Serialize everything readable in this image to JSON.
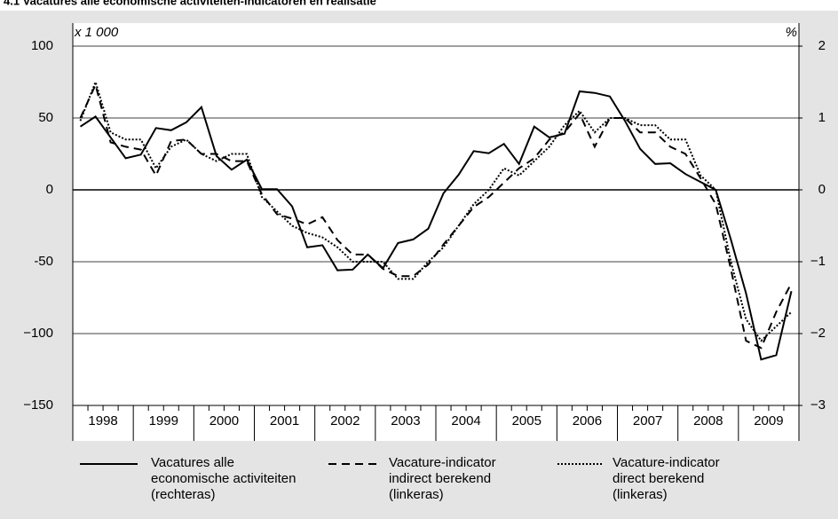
{
  "chart_data": {
    "type": "line",
    "title": "4.1  Vacatures alle economische activiteiten-indicatoren en realisatie",
    "y_unit_label": "x 1 000",
    "y2_unit_label": "%",
    "x": [
      1998.125,
      1998.375,
      1998.625,
      1998.875,
      1999.125,
      1999.375,
      1999.625,
      1999.875,
      2000.125,
      2000.375,
      2000.625,
      2000.875,
      2001.125,
      2001.375,
      2001.625,
      2001.875,
      2002.125,
      2002.375,
      2002.625,
      2002.875,
      2003.125,
      2003.375,
      2003.625,
      2003.875,
      2004.125,
      2004.375,
      2004.625,
      2004.875,
      2005.125,
      2005.375,
      2005.625,
      2005.875,
      2006.125,
      2006.375,
      2006.625,
      2006.875,
      2007.125,
      2007.375,
      2007.625,
      2007.875,
      2008.125,
      2008.375,
      2008.625,
      2008.875,
      2009.125,
      2009.375,
      2009.625,
      2009.875
    ],
    "xlim": [
      1998,
      2010
    ],
    "xticks": [
      1998,
      1999,
      2000,
      2001,
      2002,
      2003,
      2004,
      2005,
      2006,
      2007,
      2008,
      2009
    ],
    "ylim": [
      -150,
      100
    ],
    "yticks": [
      100,
      50,
      0,
      -50,
      {
        "value": -100,
        "label": "−100"
      },
      {
        "value": -150,
        "label": "−150"
      }
    ],
    "y2lim": [
      -3,
      2
    ],
    "y2ticks": [
      2,
      1,
      0,
      {
        "value": -1,
        "label": "−1"
      },
      {
        "value": -2,
        "label": "−2"
      },
      {
        "value": -3,
        "label": "−3"
      }
    ],
    "grid": true,
    "series": [
      {
        "name": "Vacatures alle economische activiteiten (rechteras)",
        "color": "#000000",
        "style": "solid",
        "axis": "y2",
        "values": [
          0.88,
          1.02,
          0.73,
          0.44,
          0.49,
          0.86,
          0.83,
          0.94,
          1.15,
          0.47,
          0.28,
          0.42,
          0.01,
          0.01,
          -0.23,
          -0.8,
          -0.77,
          -1.12,
          -1.11,
          -0.9,
          -1.09,
          -0.74,
          -0.69,
          -0.54,
          -0.05,
          0.21,
          0.54,
          0.51,
          0.64,
          0.36,
          0.88,
          0.73,
          0.78,
          1.37,
          1.35,
          1.3,
          0.96,
          0.57,
          0.36,
          0.37,
          0.22,
          0.11,
          0.0,
          -0.69,
          -1.44,
          -2.36,
          -2.3,
          -1.41
        ]
      },
      {
        "name": "Vacature-indicator indirect berekend (linkeras)",
        "color": "#000000",
        "style": "dashed",
        "values": [
          50,
          73,
          33,
          30,
          28,
          10,
          34,
          35,
          25,
          25,
          20,
          20,
          -3,
          -17,
          -20,
          -24,
          -19,
          -35,
          -45,
          -45,
          -55,
          -60,
          -60,
          -52,
          -38,
          -25,
          -12,
          -5,
          5,
          15,
          22,
          35,
          40,
          53,
          30,
          50,
          50,
          40,
          40,
          30,
          25,
          8,
          -10,
          -55,
          -105,
          -110,
          -85,
          -65
        ]
      },
      {
        "name": "Vacature-indicator direct berekend (linkeras)",
        "color": "#000000",
        "style": "dotted",
        "values": [
          48,
          75,
          40,
          35,
          35,
          15,
          30,
          35,
          25,
          20,
          25,
          25,
          -5,
          -15,
          -25,
          -30,
          -33,
          -40,
          -50,
          -50,
          -50,
          -62,
          -62,
          -50,
          -40,
          -25,
          -10,
          0,
          15,
          10,
          20,
          30,
          45,
          55,
          40,
          50,
          50,
          45,
          45,
          35,
          35,
          10,
          0,
          -50,
          -90,
          -105,
          -95,
          -85
        ]
      }
    ]
  }
}
